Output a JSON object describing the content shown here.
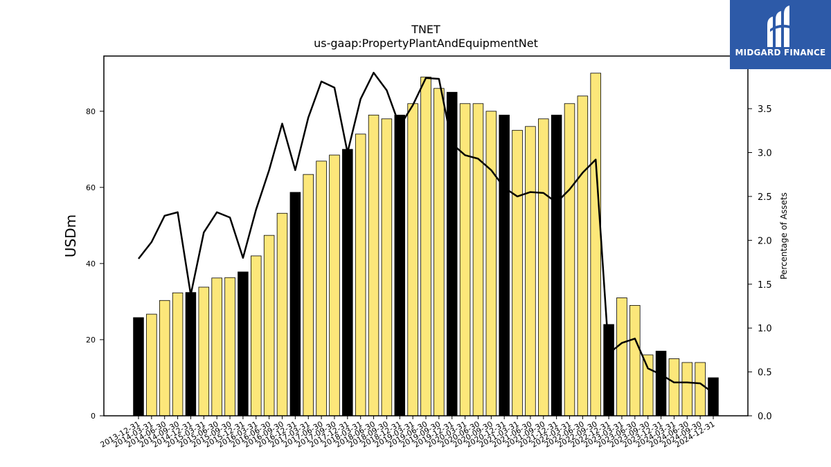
{
  "brand": {
    "name": "MIDGARD FINANCE",
    "color": "#2d5aa8"
  },
  "chart_data": {
    "type": "bar",
    "title": "TNET",
    "subtitle": "us-gaap:PropertyPlantAndEquipmentNet",
    "ylabel": "USDm",
    "y2label": "Percentage of Assets",
    "ylim": [
      0,
      94.5
    ],
    "y2lim": [
      0,
      4.1
    ],
    "yticks": [
      0,
      20,
      40,
      60,
      80
    ],
    "y2ticks": [
      0.0,
      0.5,
      1.0,
      1.5,
      2.0,
      2.5,
      3.0,
      3.5
    ],
    "categories": [
      "2013-12-31",
      "2014-03-31",
      "2014-06-30",
      "2014-09-30",
      "2014-12-31",
      "2015-03-31",
      "2015-06-30",
      "2015-09-30",
      "2015-12-31",
      "2016-03-31",
      "2016-06-30",
      "2016-09-30",
      "2016-12-31",
      "2017-03-31",
      "2017-06-30",
      "2017-09-30",
      "2017-12-31",
      "2018-03-31",
      "2018-06-30",
      "2018-09-30",
      "2018-12-31",
      "2019-03-31",
      "2019-06-30",
      "2019-09-30",
      "2019-12-31",
      "2020-03-31",
      "2020-06-30",
      "2020-09-30",
      "2020-12-31",
      "2021-03-31",
      "2021-06-30",
      "2021-09-30",
      "2021-12-31",
      "2022-03-31",
      "2022-06-30",
      "2022-09-30",
      "2022-12-31",
      "2023-03-31",
      "2023-06-30",
      "2023-09-30",
      "2023-12-31",
      "2024-03-31",
      "2024-06-30",
      "2024-09-30",
      "2024-12-31"
    ],
    "series": [
      {
        "type": "bar",
        "values": [
          25.8,
          26.7,
          30.3,
          32.3,
          32.4,
          33.8,
          36.2,
          36.3,
          37.8,
          42.0,
          47.4,
          53.2,
          58.7,
          63.4,
          66.9,
          68.5,
          70.0,
          74.0,
          79.0,
          78.0,
          79.0,
          82.0,
          89.0,
          86.0,
          85.0,
          82.0,
          82.0,
          80.0,
          79.0,
          75.0,
          76.0,
          78.0,
          79.0,
          82.0,
          84.0,
          90.0,
          24.0,
          31.0,
          29.0,
          16.0,
          17.0,
          15.0,
          14.0,
          14.0,
          10.0
        ],
        "fiscal_year_end_color": "#000000",
        "quarter_color": "#fce77a"
      },
      {
        "type": "line",
        "axis": "right",
        "color": "#000000",
        "values": [
          1.79,
          1.98,
          2.28,
          2.32,
          1.38,
          2.09,
          2.32,
          2.26,
          1.8,
          2.35,
          2.8,
          3.33,
          2.8,
          3.4,
          3.81,
          3.74,
          3.0,
          3.61,
          3.91,
          3.71,
          3.3,
          3.54,
          3.85,
          3.84,
          3.1,
          2.97,
          2.93,
          2.8,
          2.6,
          2.5,
          2.55,
          2.54,
          2.43,
          2.58,
          2.77,
          2.92,
          0.71,
          0.83,
          0.88,
          0.54,
          0.47,
          0.38,
          0.38,
          0.37,
          0.26
        ]
      }
    ]
  }
}
